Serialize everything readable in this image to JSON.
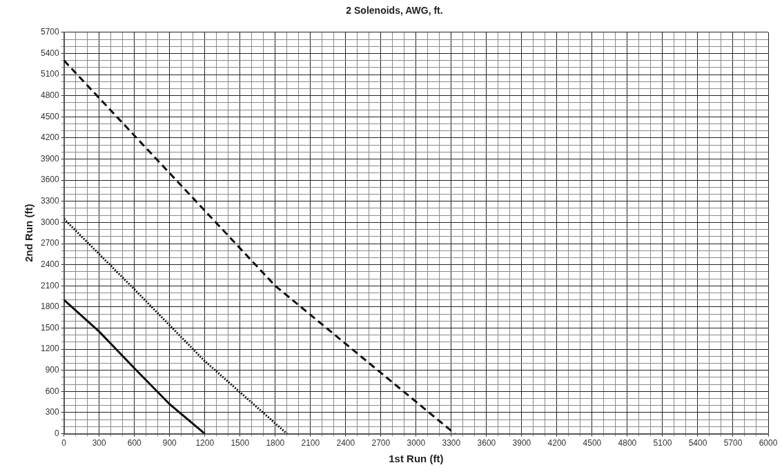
{
  "chart_data": {
    "type": "line",
    "title": "2 Solenoids, AWG, ft.",
    "xlabel": "1st Run (ft)",
    "ylabel": "2nd Run (ft)",
    "series": [
      {
        "color": "#111111",
        "line_style": "solid",
        "x": [
          0,
          300,
          600,
          900,
          1200
        ],
        "values": [
          1900,
          1450,
          930,
          420,
          0
        ]
      },
      {
        "color": "#111111",
        "line_style": "dotted",
        "x": [
          0,
          600,
          1200,
          1900
        ],
        "values": [
          3050,
          2050,
          1030,
          0
        ]
      },
      {
        "color": "#111111",
        "line_style": "dashed",
        "x": [
          0,
          1800,
          3330
        ],
        "values": [
          5300,
          2100,
          0
        ]
      }
    ],
    "xlim": [
      0,
      6000
    ],
    "ylim": [
      0,
      5700
    ],
    "xticks": [
      0,
      {
        "value": 100,
        "label": null
      },
      {
        "value": 200,
        "label": null
      },
      300,
      {
        "value": 400,
        "label": null
      },
      {
        "value": 500,
        "label": null
      },
      600,
      {
        "value": 700,
        "label": null
      },
      {
        "value": 800,
        "label": null
      },
      900,
      {
        "value": 1000,
        "label": null
      },
      {
        "value": 1100,
        "label": null
      },
      1200,
      {
        "value": 1300,
        "label": null
      },
      {
        "value": 1400,
        "label": null
      },
      1500,
      {
        "value": 1600,
        "label": null
      },
      {
        "value": 1700,
        "label": null
      },
      1800,
      {
        "value": 1900,
        "label": null
      },
      {
        "value": 2000,
        "label": null
      },
      2100,
      {
        "value": 2200,
        "label": null
      },
      {
        "value": 2300,
        "label": null
      },
      2400,
      {
        "value": 2500,
        "label": null
      },
      {
        "value": 2600,
        "label": null
      },
      2700,
      {
        "value": 2800,
        "label": null
      },
      {
        "value": 2900,
        "label": null
      },
      3000,
      {
        "value": 3100,
        "label": null
      },
      {
        "value": 3200,
        "label": null
      },
      3300,
      {
        "value": 3400,
        "label": null
      },
      {
        "value": 3500,
        "label": null
      },
      3600,
      {
        "value": 3700,
        "label": null
      },
      {
        "value": 3800,
        "label": null
      },
      3900,
      {
        "value": 4000,
        "label": null
      },
      {
        "value": 4100,
        "label": null
      },
      4200,
      {
        "value": 4300,
        "label": null
      },
      {
        "value": 4400,
        "label": null
      },
      4500,
      {
        "value": 4600,
        "label": null
      },
      {
        "value": 4700,
        "label": null
      },
      4800,
      {
        "value": 4900,
        "label": null
      },
      {
        "value": 5000,
        "label": null
      },
      5100,
      {
        "value": 5200,
        "label": null
      },
      {
        "value": 5300,
        "label": null
      },
      5400,
      {
        "value": 5500,
        "label": null
      },
      {
        "value": 5600,
        "label": null
      },
      5700,
      {
        "value": 5800,
        "label": null
      },
      {
        "value": 5900,
        "label": null
      },
      6000
    ],
    "yticks": [
      0,
      {
        "value": 100,
        "label": null
      },
      {
        "value": 200,
        "label": null
      },
      300,
      {
        "value": 400,
        "label": null
      },
      {
        "value": 500,
        "label": null
      },
      600,
      {
        "value": 700,
        "label": null
      },
      {
        "value": 800,
        "label": null
      },
      900,
      {
        "value": 1000,
        "label": null
      },
      {
        "value": 1100,
        "label": null
      },
      1200,
      {
        "value": 1300,
        "label": null
      },
      {
        "value": 1400,
        "label": null
      },
      1500,
      {
        "value": 1600,
        "label": null
      },
      {
        "value": 1700,
        "label": null
      },
      1800,
      {
        "value": 1900,
        "label": null
      },
      {
        "value": 2000,
        "label": null
      },
      2100,
      {
        "value": 2200,
        "label": null
      },
      {
        "value": 2300,
        "label": null
      },
      2400,
      {
        "value": 2500,
        "label": null
      },
      {
        "value": 2600,
        "label": null
      },
      2700,
      {
        "value": 2800,
        "label": null
      },
      {
        "value": 2900,
        "label": null
      },
      3000,
      {
        "value": 3100,
        "label": null
      },
      {
        "value": 3200,
        "label": null
      },
      3300,
      {
        "value": 3400,
        "label": null
      },
      {
        "value": 3500,
        "label": null
      },
      3600,
      {
        "value": 3700,
        "label": null
      },
      {
        "value": 3800,
        "label": null
      },
      3900,
      {
        "value": 4000,
        "label": null
      },
      {
        "value": 4100,
        "label": null
      },
      4200,
      {
        "value": 4300,
        "label": null
      },
      {
        "value": 4400,
        "label": null
      },
      4500,
      {
        "value": 4600,
        "label": null
      },
      {
        "value": 4700,
        "label": null
      },
      4800,
      {
        "value": 4900,
        "label": null
      },
      {
        "value": 5000,
        "label": null
      },
      5100,
      {
        "value": 5200,
        "label": null
      },
      {
        "value": 5300,
        "label": null
      },
      5400,
      {
        "value": 5500,
        "label": null
      },
      {
        "value": 5600,
        "label": null
      },
      5700
    ],
    "grid": true,
    "legend": false,
    "marker": "none"
  }
}
